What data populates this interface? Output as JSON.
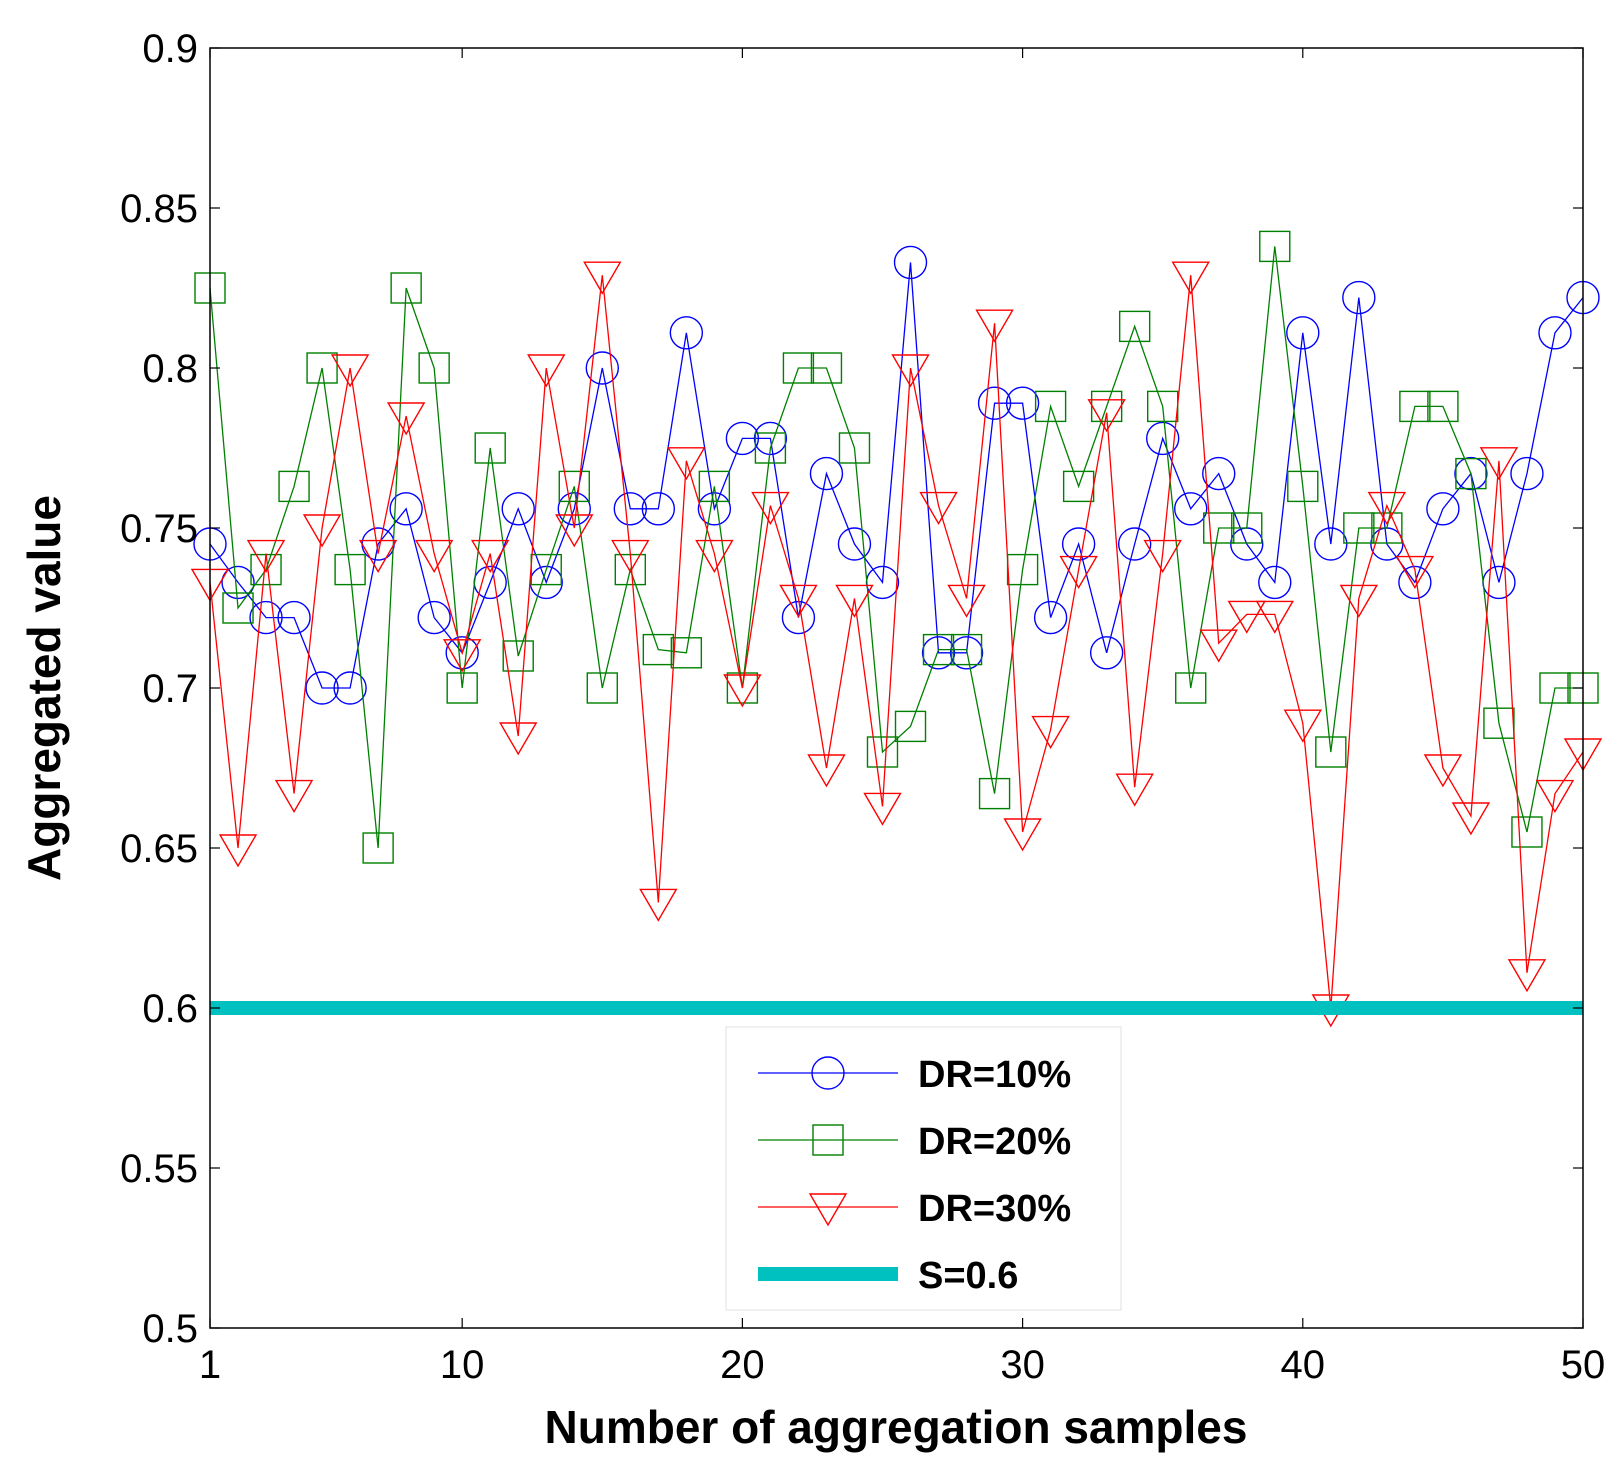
{
  "chart_data": {
    "type": "line",
    "xlabel": "Number of aggregation samples",
    "ylabel": "Aggregated value",
    "xlim": [
      1,
      50
    ],
    "ylim": [
      0.5,
      0.9
    ],
    "x_ticks": [
      1,
      10,
      20,
      30,
      40,
      50
    ],
    "y_ticks": [
      0.5,
      0.55,
      0.6,
      0.65,
      0.7,
      0.75,
      0.8,
      0.85,
      0.9
    ],
    "y_tick_labels": [
      "0.5",
      "0.55",
      "0.6",
      "0.65",
      "0.7",
      "0.75",
      "0.8",
      "0.85",
      "0.9"
    ],
    "grid": false,
    "legend_position": "bottom-center",
    "x": [
      1,
      2,
      3,
      4,
      5,
      6,
      7,
      8,
      9,
      10,
      11,
      12,
      13,
      14,
      15,
      16,
      17,
      18,
      19,
      20,
      21,
      22,
      23,
      24,
      25,
      26,
      27,
      28,
      29,
      30,
      31,
      32,
      33,
      34,
      35,
      36,
      37,
      38,
      39,
      40,
      41,
      42,
      43,
      44,
      45,
      46,
      47,
      48,
      49,
      50
    ],
    "series": [
      {
        "name": "DR=10%",
        "color": "#0000ff",
        "marker": "circle",
        "values": [
          0.745,
          0.733,
          0.722,
          0.722,
          0.7,
          0.7,
          0.745,
          0.756,
          0.722,
          0.711,
          0.733,
          0.756,
          0.733,
          0.756,
          0.8,
          0.756,
          0.756,
          0.811,
          0.756,
          0.778,
          0.778,
          0.722,
          0.767,
          0.745,
          0.733,
          0.833,
          0.711,
          0.711,
          0.789,
          0.789,
          0.722,
          0.745,
          0.711,
          0.745,
          0.778,
          0.756,
          0.767,
          0.745,
          0.733,
          0.811,
          0.745,
          0.822,
          0.745,
          0.733,
          0.756,
          0.767,
          0.733,
          0.767,
          0.811,
          0.822
        ]
      },
      {
        "name": "DR=20%",
        "color": "#008000",
        "marker": "square",
        "values": [
          0.825,
          0.725,
          0.737,
          0.763,
          0.8,
          0.737,
          0.65,
          0.825,
          0.8,
          0.7,
          0.775,
          0.71,
          0.737,
          0.763,
          0.7,
          0.737,
          0.712,
          0.711,
          0.763,
          0.7,
          0.775,
          0.8,
          0.8,
          0.775,
          0.68,
          0.688,
          0.712,
          0.712,
          0.667,
          0.737,
          0.788,
          0.763,
          0.788,
          0.813,
          0.788,
          0.7,
          0.75,
          0.75,
          0.838,
          0.763,
          0.68,
          0.75,
          0.75,
          0.788,
          0.788,
          0.767,
          0.689,
          0.655,
          0.7,
          0.7
        ]
      },
      {
        "name": "DR=30%",
        "color": "#ff0000",
        "marker": "triangle-down",
        "values": [
          0.733,
          0.65,
          0.742,
          0.667,
          0.75,
          0.8,
          0.742,
          0.785,
          0.742,
          0.711,
          0.742,
          0.685,
          0.8,
          0.75,
          0.829,
          0.742,
          0.633,
          0.771,
          0.742,
          0.7,
          0.757,
          0.728,
          0.675,
          0.728,
          0.663,
          0.8,
          0.757,
          0.728,
          0.814,
          0.655,
          0.687,
          0.737,
          0.786,
          0.669,
          0.742,
          0.829,
          0.714,
          0.723,
          0.723,
          0.689,
          0.6,
          0.728,
          0.757,
          0.737,
          0.675,
          0.66,
          0.771,
          0.611,
          0.667,
          0.68
        ]
      },
      {
        "name": "S=0.6",
        "color": "#00c0c0",
        "marker": "none",
        "values": [
          0.6,
          0.6,
          0.6,
          0.6,
          0.6,
          0.6,
          0.6,
          0.6,
          0.6,
          0.6,
          0.6,
          0.6,
          0.6,
          0.6,
          0.6,
          0.6,
          0.6,
          0.6,
          0.6,
          0.6,
          0.6,
          0.6,
          0.6,
          0.6,
          0.6,
          0.6,
          0.6,
          0.6,
          0.6,
          0.6,
          0.6,
          0.6,
          0.6,
          0.6,
          0.6,
          0.6,
          0.6,
          0.6,
          0.6,
          0.6,
          0.6,
          0.6,
          0.6,
          0.6,
          0.6,
          0.6,
          0.6,
          0.6,
          0.6,
          0.6
        ]
      }
    ]
  }
}
